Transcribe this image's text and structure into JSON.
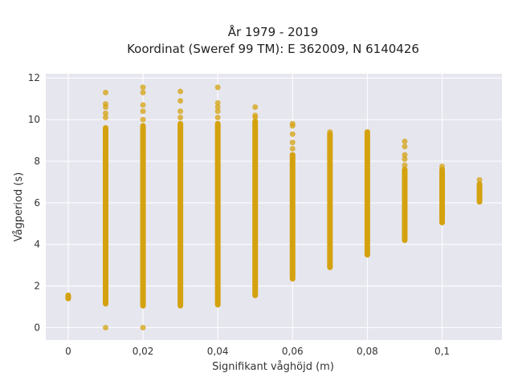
{
  "chart_data": {
    "type": "scatter",
    "title_lines": [
      "År 1979 - 2019",
      "Koordinat (Sweref 99 TM): E 362009, N 6140426"
    ],
    "xlabel": "Signifikant våghöjd (m)",
    "ylabel": "Vågperiod (s)",
    "xlim": [
      -0.006,
      0.116
    ],
    "ylim": [
      -0.6,
      12.2
    ],
    "x_ticks": [
      0,
      0.02,
      0.04,
      0.06,
      0.08,
      0.1
    ],
    "x_tick_labels": [
      "0",
      "0,02",
      "0,04",
      "0,06",
      "0,08",
      "0,1"
    ],
    "y_ticks": [
      0,
      2,
      4,
      6,
      8,
      10,
      12
    ],
    "y_tick_labels": [
      "0",
      "2",
      "4",
      "6",
      "8",
      "10",
      "12"
    ],
    "grid": true,
    "legend": "none",
    "colors": {
      "marker": "#d4a20f",
      "plot_bg": "#e6e6ef",
      "grid": "#ffffff"
    },
    "columns": [
      {
        "x": 0,
        "range": [
          1.4,
          1.55
        ],
        "points": [
          1.42,
          1.5
        ]
      },
      {
        "x": 0.01,
        "range": [
          1.15,
          9.6
        ],
        "points": [
          0,
          10.1,
          10.3,
          10.6,
          10.75,
          11.3
        ]
      },
      {
        "x": 0.02,
        "range": [
          1.05,
          9.7
        ],
        "points": [
          0,
          10.0,
          10.4,
          10.7,
          11.3,
          11.55
        ]
      },
      {
        "x": 0.03,
        "range": [
          1.05,
          9.8
        ],
        "points": [
          10.1,
          10.4,
          10.9,
          11.35
        ]
      },
      {
        "x": 0.04,
        "range": [
          1.1,
          9.8
        ],
        "points": [
          10.1,
          10.4,
          10.6,
          10.8,
          11.55
        ]
      },
      {
        "x": 0.05,
        "range": [
          1.55,
          9.9
        ],
        "points": [
          10.1,
          10.2,
          10.6
        ]
      },
      {
        "x": 0.06,
        "range": [
          2.35,
          8.3
        ],
        "points": [
          8.6,
          8.9,
          9.3,
          9.7,
          9.8
        ]
      },
      {
        "x": 0.07,
        "range": [
          2.9,
          9.3
        ],
        "points": [
          9.4
        ]
      },
      {
        "x": 0.08,
        "range": [
          3.5,
          9.4
        ],
        "points": []
      },
      {
        "x": 0.09,
        "range": [
          4.2,
          7.6
        ],
        "points": [
          7.8,
          8.1,
          8.3,
          8.7,
          8.95
        ]
      },
      {
        "x": 0.1,
        "range": [
          5.05,
          7.6
        ],
        "points": [
          7.75
        ]
      },
      {
        "x": 0.11,
        "range": [
          6.05,
          6.9
        ],
        "points": [
          7.1
        ]
      }
    ]
  }
}
